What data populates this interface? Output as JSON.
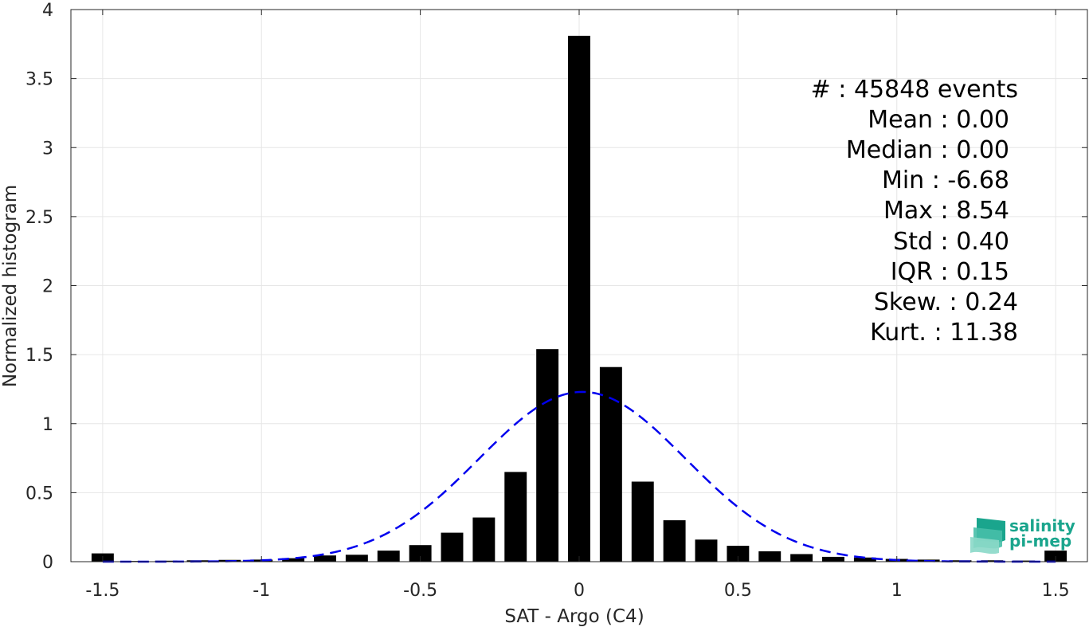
{
  "chart_data": {
    "type": "bar",
    "xlabel": "SAT - Argo (C4)",
    "ylabel": "Normalized histogram",
    "xlim": [
      -1.6,
      1.6
    ],
    "ylim": [
      0,
      4
    ],
    "grid": true,
    "xticks": [
      -1.5,
      -1,
      -0.5,
      0,
      0.5,
      1,
      1.5
    ],
    "xtick_labels": [
      "-1.5",
      "-1",
      "-0.5",
      "0",
      "0.5",
      "1",
      "1.5"
    ],
    "yticks": [
      0,
      0.5,
      1,
      1.5,
      2,
      2.5,
      3,
      3.5,
      4
    ],
    "ytick_labels": [
      "0",
      "0.5",
      "1",
      "1.5",
      "2",
      "2.5",
      "3",
      "3.5",
      "4"
    ],
    "bar_color": "#000000",
    "bin_width": 0.1,
    "bins": [
      {
        "x": -1.5,
        "y": 0.06
      },
      {
        "x": -1.4,
        "y": 0.005
      },
      {
        "x": -1.3,
        "y": 0.007
      },
      {
        "x": -1.2,
        "y": 0.01
      },
      {
        "x": -1.1,
        "y": 0.013
      },
      {
        "x": -1.0,
        "y": 0.015
      },
      {
        "x": -0.9,
        "y": 0.025
      },
      {
        "x": -0.8,
        "y": 0.045
      },
      {
        "x": -0.7,
        "y": 0.05
      },
      {
        "x": -0.6,
        "y": 0.08
      },
      {
        "x": -0.5,
        "y": 0.12
      },
      {
        "x": -0.4,
        "y": 0.21
      },
      {
        "x": -0.3,
        "y": 0.32
      },
      {
        "x": -0.2,
        "y": 0.65
      },
      {
        "x": -0.1,
        "y": 1.54
      },
      {
        "x": 0.0,
        "y": 3.81
      },
      {
        "x": 0.1,
        "y": 1.41
      },
      {
        "x": 0.2,
        "y": 0.58
      },
      {
        "x": 0.3,
        "y": 0.3
      },
      {
        "x": 0.4,
        "y": 0.16
      },
      {
        "x": 0.5,
        "y": 0.115
      },
      {
        "x": 0.6,
        "y": 0.075
      },
      {
        "x": 0.7,
        "y": 0.055
      },
      {
        "x": 0.8,
        "y": 0.035
      },
      {
        "x": 0.9,
        "y": 0.03
      },
      {
        "x": 1.0,
        "y": 0.02
      },
      {
        "x": 1.1,
        "y": 0.015
      },
      {
        "x": 1.2,
        "y": 0.01
      },
      {
        "x": 1.3,
        "y": 0.01
      },
      {
        "x": 1.4,
        "y": 0.008
      },
      {
        "x": 1.5,
        "y": 0.08
      }
    ],
    "fit_curve": {
      "type": "gaussian",
      "style": "dashed",
      "color": "#0000ee",
      "mean": 0.01,
      "peak": 1.23,
      "sigma": 0.325,
      "x_range": [
        -1.5,
        1.5
      ]
    },
    "annotations": [
      "#  : 45848 events",
      "Mean : 0.00",
      "Median : 0.00",
      "Min : -6.68",
      "Max : 8.54",
      "Std : 0.40",
      "IQR : 0.15",
      "Skew. : 0.24",
      "Kurt. : 11.38"
    ]
  },
  "logo": {
    "line1": "salinity",
    "line2": "pi-mep",
    "color": "#1aa58d"
  }
}
